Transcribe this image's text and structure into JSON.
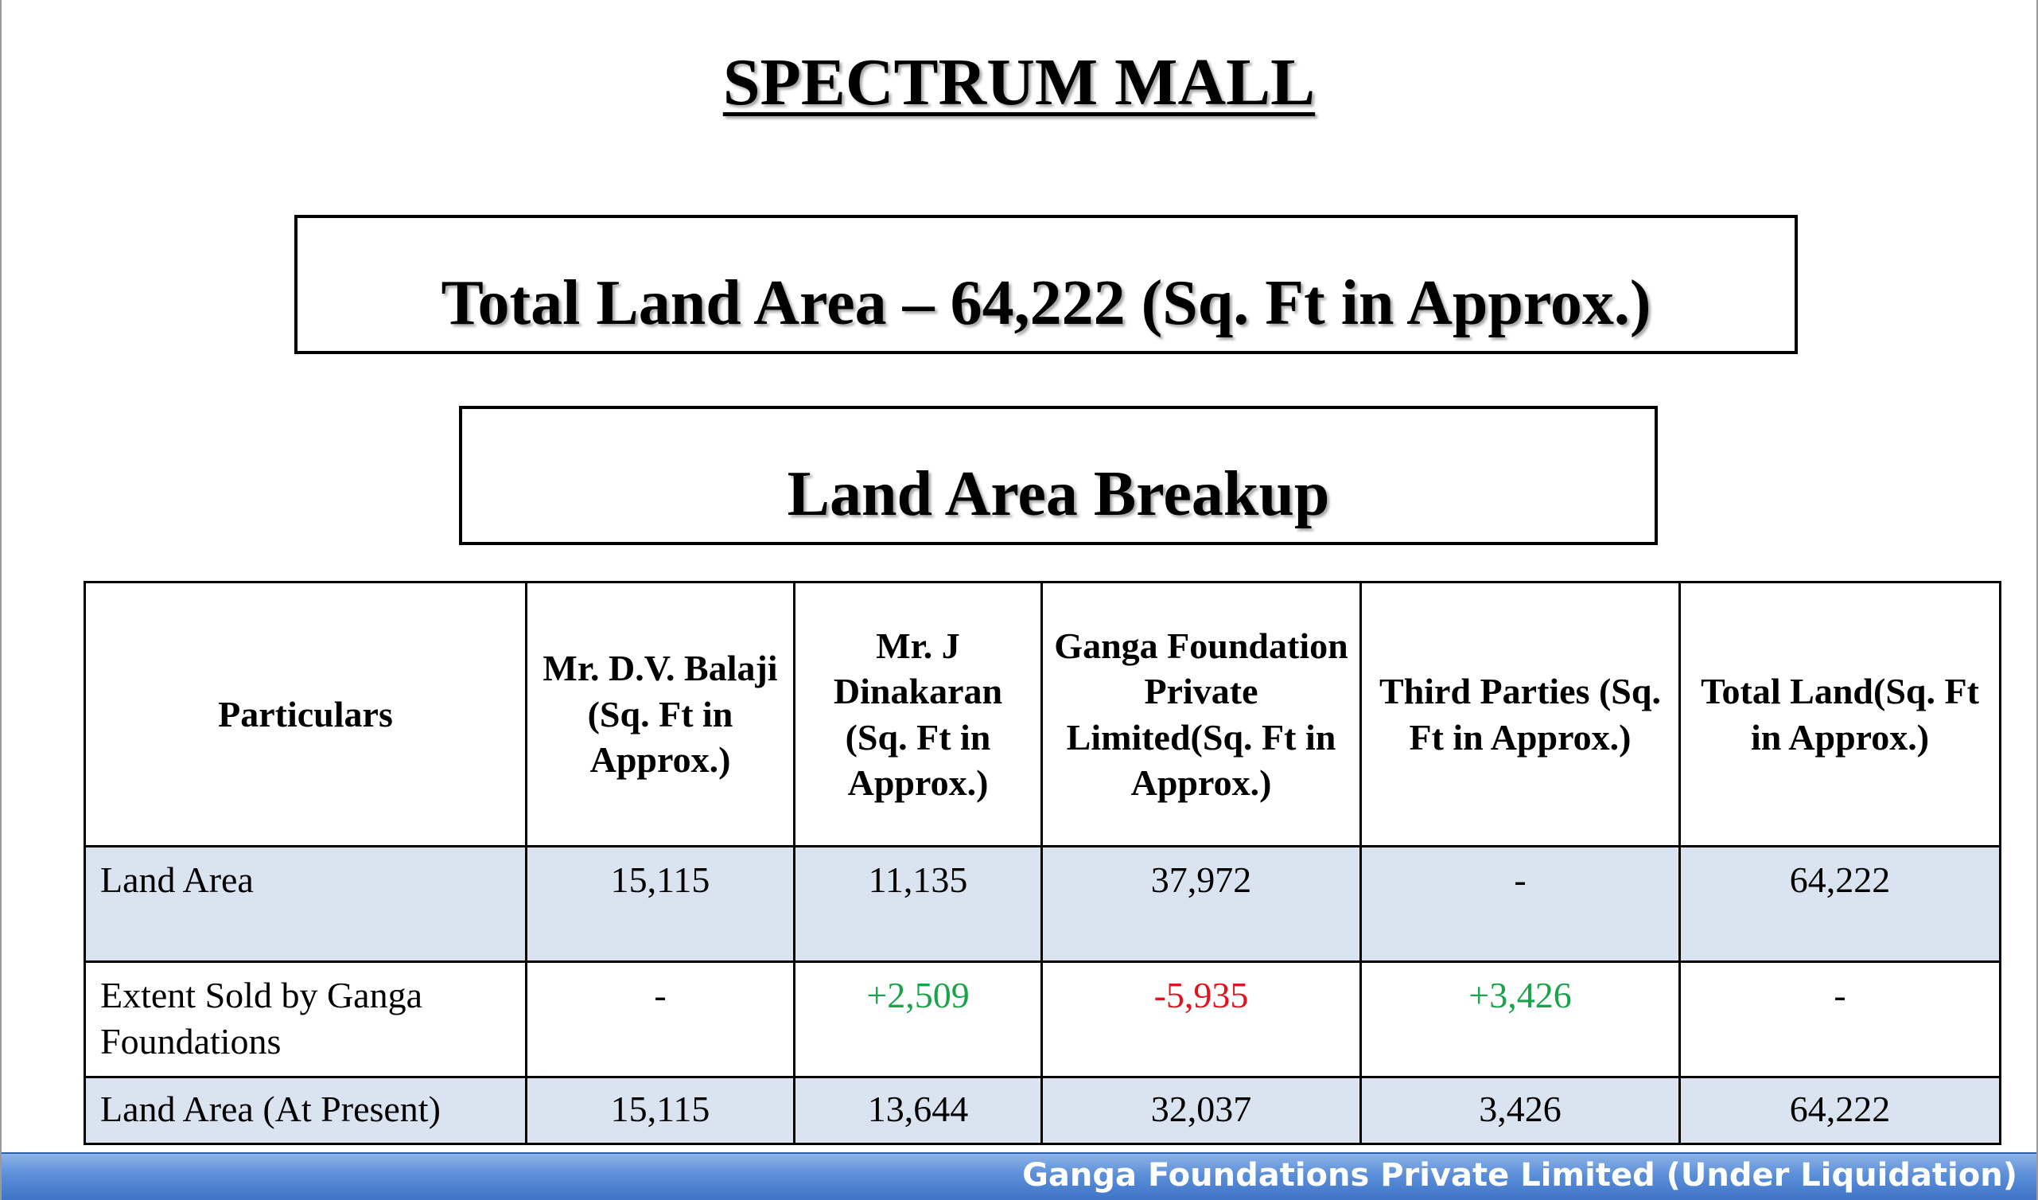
{
  "title": "SPECTRUM MALL",
  "total_box": "Total Land Area – 64,222 (Sq. Ft in Approx.)",
  "breakup_box": "Land Area Breakup",
  "table": {
    "headers": [
      "Particulars",
      "Mr. D.V. Balaji (Sq. Ft in Approx.)",
      "Mr. J Dinakaran (Sq. Ft in Approx.)",
      "Ganga Foundation Private Limited(Sq. Ft in Approx.)",
      "Third Parties (Sq. Ft in Approx.)",
      "Total Land(Sq. Ft in Approx.)"
    ],
    "rows": [
      [
        "Land Area",
        "15,115",
        "11,135",
        "37,972",
        "-",
        "64,222"
      ],
      [
        "Extent Sold by Ganga Foundations",
        "-",
        "+2,509",
        "-5,935",
        "+3,426",
        "-"
      ],
      [
        "Land Area (At Present)",
        "15,115",
        "13,644",
        "32,037",
        "3,426",
        "64,222"
      ]
    ]
  },
  "colors": {
    "positive": "#1aa34a",
    "negative": "#e0141e",
    "row_shade": "#dae3f0",
    "footer_band": "#4a7fcf"
  },
  "footer": "Ganga Foundations Private Limited (Under Liquidation)"
}
